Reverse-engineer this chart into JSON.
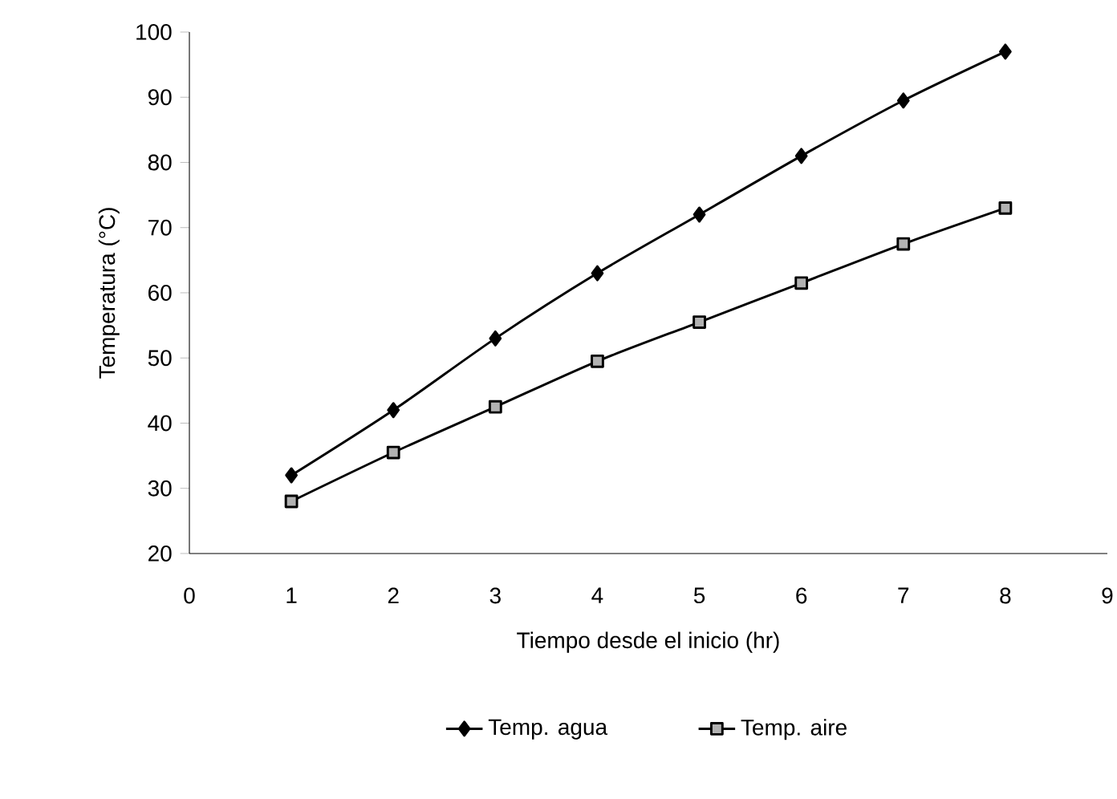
{
  "chart_data": {
    "type": "line",
    "xlabel": "Tiempo desde el inicio (hr)",
    "ylabel": "Temperatura (°C)",
    "x": [
      1,
      2,
      3,
      4,
      5,
      6,
      7,
      8
    ],
    "series": [
      {
        "name": "Temp. agua",
        "color": "#000000",
        "marker": "diamond",
        "values": [
          32,
          42,
          53,
          63,
          72,
          81,
          89.5,
          97
        ]
      },
      {
        "name": "Temp. aire",
        "color": "#000000",
        "marker": "square",
        "values": [
          28,
          35.5,
          42.5,
          49.5,
          55.5,
          61.5,
          67.5,
          73
        ]
      }
    ],
    "xlim": [
      0,
      9
    ],
    "xticks": [
      0,
      1,
      2,
      3,
      4,
      5,
      6,
      7,
      8,
      9
    ],
    "ylim": [
      20,
      100
    ],
    "yticks": [
      20,
      30,
      40,
      50,
      60,
      70,
      80,
      90,
      100
    ],
    "grid": false,
    "legend": "bottom",
    "line_style": "solid"
  }
}
